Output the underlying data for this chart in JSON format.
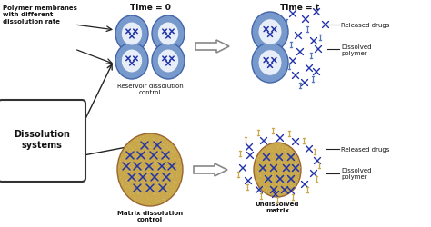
{
  "bg_color": "#ffffff",
  "title_time0": "Time = 0",
  "title_timet": "Time = t",
  "label_reservoir": "Reservoir dissolution\ncontrol",
  "label_matrix": "Matrix dissolution\ncontrol",
  "label_undissolved": "Undissolved\nmatrix",
  "label_dissolution": "Dissolution\nsystems",
  "label_polymer_memb": "Polymer membranes\nwith different\ndissolution rate",
  "label_released_drugs": "Released drugs",
  "label_dissolved_polymer": "Dissolved\npolymer",
  "color_outer_circle": "#7799cc",
  "color_inner_circle": "#e8eef8",
  "color_drug_blue": "#2233aa",
  "color_matrix_fill": "#c8a84b",
  "color_matrix_stipple": "#d4b86a",
  "color_text": "#111111",
  "color_arrow": "#444444",
  "color_box_edge": "#333333"
}
